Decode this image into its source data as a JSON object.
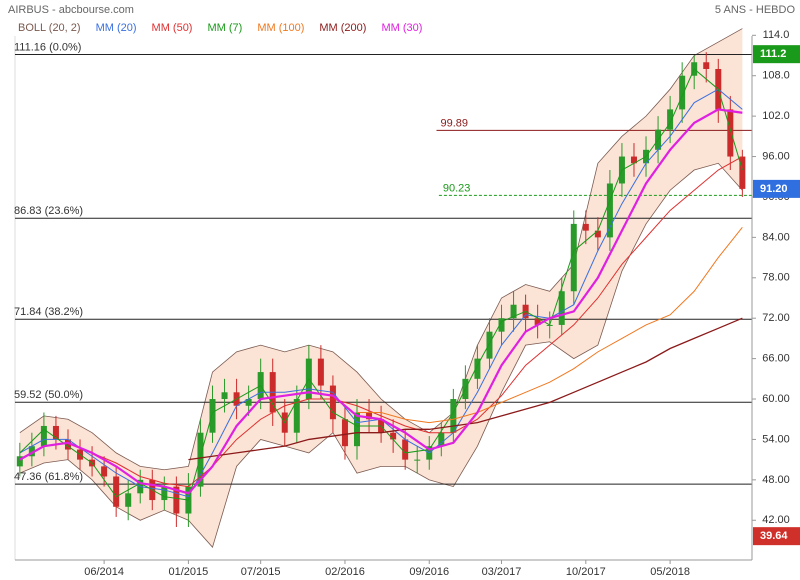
{
  "chart_data": {
    "type": "candlestick",
    "title": "AIRBUS - abcbourse.com",
    "period": "5 ANS - HEBDO",
    "xlim": [
      -2.4,
      58.8
    ],
    "xticks": [
      {
        "value": 5,
        "label": "06/2014"
      },
      {
        "value": 12,
        "label": "01/2015"
      },
      {
        "value": 18,
        "label": "07/2015"
      },
      {
        "value": 25,
        "label": "02/2016"
      },
      {
        "value": 32,
        "label": "09/2016"
      },
      {
        "value": 38,
        "label": "03/2017"
      },
      {
        "value": 45,
        "label": "10/2017"
      },
      {
        "value": 52,
        "label": "05/2018"
      }
    ],
    "ylim": [
      36.1,
      118.5
    ],
    "yticks": [
      {
        "value": 42,
        "label": "42.00"
      },
      {
        "value": 48,
        "label": "48.00"
      },
      {
        "value": 54,
        "label": "54.00"
      },
      {
        "value": 60,
        "label": "60.00"
      },
      {
        "value": 66,
        "label": "66.00"
      },
      {
        "value": 72,
        "label": "72.00"
      },
      {
        "value": 78,
        "label": "78.00"
      },
      {
        "value": 84,
        "label": "84.00"
      },
      {
        "value": 90,
        "label": "90.00"
      },
      {
        "value": 96,
        "label": "96.00"
      },
      {
        "value": 102,
        "label": "102.0"
      },
      {
        "value": 108,
        "label": "108.0"
      },
      {
        "value": 114,
        "label": "114.0"
      }
    ],
    "candles": {
      "up_color": "#2a9a2a",
      "down_color": "#cc2b2b",
      "x": [
        -2,
        -1,
        0,
        1,
        2,
        3,
        4,
        5,
        6,
        7,
        8,
        9,
        10,
        11,
        12,
        13,
        14,
        15,
        16,
        17,
        18,
        19,
        20,
        21,
        22,
        23,
        24,
        25,
        26,
        27,
        28,
        29,
        30,
        31,
        32,
        33,
        34,
        35,
        36,
        37,
        38,
        39,
        40,
        41,
        42,
        43,
        44,
        45,
        46,
        47,
        48,
        49,
        50,
        51,
        52,
        53,
        54,
        55,
        56,
        57,
        58
      ],
      "open": [
        50,
        51.5,
        53,
        56,
        54,
        52.5,
        51,
        50,
        48.5,
        44,
        46,
        48,
        45,
        47,
        43,
        47,
        55,
        60,
        61,
        59,
        60,
        64,
        58,
        55,
        60,
        66,
        62,
        57,
        53,
        58,
        57,
        55,
        54,
        51,
        51,
        53,
        55,
        60,
        63,
        66,
        70,
        72,
        74,
        72,
        71,
        71,
        76,
        86,
        85,
        84,
        92,
        96,
        95,
        97,
        100,
        103,
        108,
        110,
        109,
        103,
        96
      ],
      "high": [
        53.5,
        55,
        58,
        57.5,
        55.5,
        54,
        53,
        51.5,
        50,
        48,
        49.5,
        49.5,
        48.5,
        48.5,
        49,
        57,
        62,
        63,
        63,
        62,
        66,
        66,
        60,
        62,
        68,
        68,
        63.5,
        59,
        60,
        60,
        59,
        57,
        55.5,
        53,
        54.5,
        56.5,
        61.5,
        65,
        68,
        72,
        74,
        76,
        75.5,
        74,
        73,
        78,
        88,
        88,
        87,
        94,
        98,
        98,
        99,
        102,
        105,
        110,
        111,
        111.5,
        110.5,
        105,
        97
      ],
      "low": [
        48.5,
        50,
        51.5,
        52.5,
        51,
        49.5,
        48.5,
        47,
        42.5,
        42,
        44.5,
        43.5,
        43.5,
        41,
        41,
        45.5,
        53.5,
        58,
        57,
        57.5,
        58.5,
        56,
        53,
        53.5,
        58.5,
        60,
        55,
        51,
        51,
        55,
        53.5,
        52,
        49.5,
        49,
        49.5,
        51.5,
        53.5,
        58.5,
        61.5,
        64.5,
        68,
        70,
        70,
        69,
        69,
        69.5,
        74,
        83,
        82,
        82,
        90,
        93,
        93,
        95,
        98,
        101,
        106,
        107,
        101,
        94,
        90
      ],
      "close": [
        51.5,
        53,
        56,
        54,
        52.5,
        51,
        50,
        48.5,
        44,
        46,
        48,
        45,
        47,
        43,
        47,
        55,
        60,
        61,
        59,
        60,
        64,
        58,
        55,
        60,
        66,
        62,
        57,
        53,
        58,
        57,
        55,
        54,
        51,
        51,
        53,
        55,
        60,
        63,
        66,
        70,
        72,
        74,
        72,
        71,
        71,
        76,
        86,
        85,
        84,
        92,
        96,
        95,
        97,
        100,
        103,
        108,
        110,
        109,
        103,
        96,
        91.2
      ]
    },
    "ma_x": [
      -2,
      0,
      2,
      4,
      6,
      8,
      10,
      12,
      14,
      16,
      18,
      20,
      22,
      24,
      26,
      28,
      30,
      32,
      34,
      36,
      38,
      40,
      42,
      44,
      46,
      48,
      50,
      52,
      54,
      56,
      58
    ],
    "bollinger": {
      "name": "BOLL (20, 2)",
      "color": "#7a5a50",
      "fill": "#fbe3d6",
      "upper": [
        55,
        57.5,
        57,
        55,
        52,
        50,
        49.5,
        50,
        64,
        67,
        68,
        67,
        68,
        67,
        64,
        60,
        57,
        55,
        58,
        68,
        75,
        77,
        76,
        80,
        95,
        99,
        102,
        106,
        111,
        113,
        115
      ],
      "lower": [
        49,
        50.5,
        51,
        48,
        44,
        42,
        43.5,
        42,
        38,
        50,
        54,
        53,
        52,
        55,
        49,
        50,
        50,
        48,
        47,
        53,
        61,
        68,
        68.5,
        66,
        68,
        79,
        86,
        91,
        94,
        95,
        91
      ]
    },
    "series": [
      {
        "name": "MM (20)",
        "color": "#3a6fe0",
        "width": 1,
        "values": [
          52,
          54,
          54,
          51.5,
          49,
          47,
          46.5,
          45.5,
          52,
          59,
          61,
          61,
          61.5,
          61,
          56.5,
          57,
          54,
          52,
          55,
          61,
          68,
          72.5,
          72,
          74,
          82,
          89,
          95,
          99,
          104,
          106,
          103
        ]
      },
      {
        "name": "MM (50)",
        "color": "#e03030",
        "width": 1,
        "values": [
          null,
          null,
          null,
          52,
          50.5,
          48.5,
          47.5,
          47,
          50,
          54,
          57,
          59,
          60,
          60,
          59,
          57.5,
          56,
          55,
          55,
          57,
          60.5,
          65,
          68,
          71,
          75,
          80,
          84,
          88,
          91,
          94,
          96
        ]
      },
      {
        "name": "MM (7)",
        "color": "#1a9a1a",
        "width": 1,
        "values": [
          52,
          55.5,
          53,
          50.5,
          45.5,
          47.5,
          45.5,
          45,
          58,
          60,
          62,
          56.5,
          63,
          58,
          56,
          56,
          52,
          52.5,
          58,
          65,
          71.5,
          73,
          71,
          82,
          85,
          94,
          96,
          101,
          109,
          106,
          94
        ]
      },
      {
        "name": "MM (100)",
        "color": "#f07820",
        "width": 1,
        "values": [
          null,
          null,
          null,
          null,
          null,
          null,
          null,
          null,
          null,
          null,
          null,
          null,
          null,
          null,
          58,
          58,
          57,
          56.5,
          57,
          58,
          59.5,
          61,
          62.5,
          64.5,
          67,
          69,
          71,
          72.5,
          76,
          81,
          85.5
        ]
      },
      {
        "name": "MM (200)",
        "color": "#8b1a1a",
        "width": 1.3,
        "values": [
          null,
          null,
          null,
          null,
          null,
          null,
          null,
          51,
          51.5,
          52,
          52.5,
          53,
          54,
          54.5,
          55,
          55,
          55.5,
          55.5,
          56,
          56.5,
          57.5,
          58.5,
          59.5,
          61,
          62.5,
          64,
          65.5,
          67.5,
          69,
          70.5,
          72
        ]
      },
      {
        "name": "MM (30)",
        "color": "#e020e0",
        "width": 2.2,
        "values": [
          51,
          53,
          53.5,
          52,
          50,
          47.5,
          47,
          46,
          50,
          56,
          60,
          60.5,
          61,
          60.5,
          57.5,
          57,
          55,
          52.5,
          53.5,
          58,
          65,
          70,
          72,
          73,
          78,
          85,
          92,
          97,
          101,
          103,
          102.5
        ]
      }
    ],
    "levels": [
      {
        "value": 111.16,
        "label": "111.16 (0.0%)",
        "color": "#222"
      },
      {
        "value": 86.83,
        "label": "86.83 (23.6%)",
        "color": "#222"
      },
      {
        "value": 71.84,
        "label": "71.84 (38.2%)",
        "color": "#222"
      },
      {
        "value": 59.52,
        "label": "59.52 (50.0%)",
        "color": "#222"
      },
      {
        "value": 47.36,
        "label": "47.36 (61.8%)",
        "color": "#222"
      }
    ],
    "partial_levels": [
      {
        "value": 99.89,
        "label": "99.89",
        "color": "#8b1a1a",
        "dashed": false,
        "x_start": 32.6
      },
      {
        "value": 90.23,
        "label": "90.23",
        "color": "#1a9a1a",
        "dashed": true,
        "x_start": 32.8
      }
    ],
    "price_labels": [
      {
        "value": 111.2,
        "label": "111.2",
        "color": "#1a9a1a"
      },
      {
        "value": 91.2,
        "label": "91.20",
        "color": "#2f6fdf"
      },
      {
        "value": 39.64,
        "label": "39.64",
        "color": "#d0302a"
      }
    ]
  }
}
